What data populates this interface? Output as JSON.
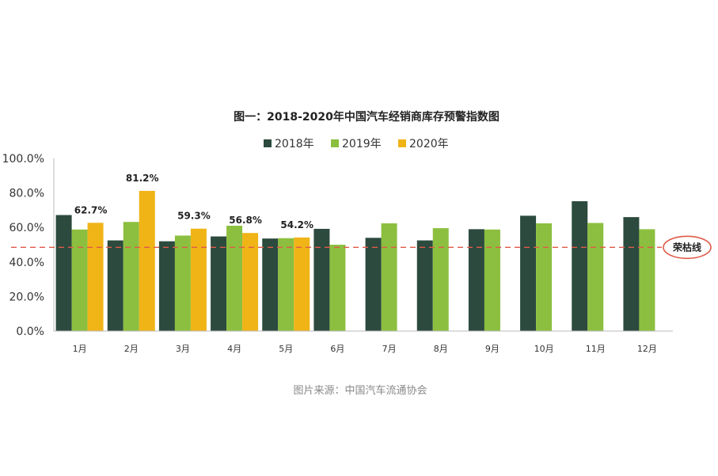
{
  "chart_data": {
    "type": "bar",
    "title": "图一：2018-2020年中国汽车经销商库存预警指数图",
    "categories": [
      "1月",
      "2月",
      "3月",
      "4月",
      "5月",
      "6月",
      "7月",
      "8月",
      "9月",
      "10月",
      "11月",
      "12月"
    ],
    "series": [
      {
        "name": "2018年",
        "color": "#2c4a3e",
        "values": [
          67.2,
          52.5,
          52.0,
          54.8,
          53.6,
          59.2,
          54.0,
          52.5,
          59.0,
          66.8,
          75.2,
          66.0
        ]
      },
      {
        "name": "2019年",
        "color": "#8cbf3f",
        "values": [
          58.8,
          63.2,
          55.3,
          61.0,
          53.8,
          50.0,
          62.4,
          59.6,
          58.8,
          62.4,
          62.6,
          59.0
        ]
      },
      {
        "name": "2020年",
        "color": "#f0b417",
        "values": [
          62.7,
          81.2,
          59.3,
          56.8,
          54.2,
          null,
          null,
          null,
          null,
          null,
          null,
          null
        ]
      }
    ],
    "data_labels": [
      {
        "category_index": 0,
        "series_index": 2,
        "text": "62.7%"
      },
      {
        "category_index": 1,
        "series_index": 2,
        "text": "81.2%"
      },
      {
        "category_index": 2,
        "series_index": 2,
        "text": "59.3%"
      },
      {
        "category_index": 3,
        "series_index": 2,
        "text": "56.8%"
      },
      {
        "category_index": 4,
        "series_index": 2,
        "text": "54.2%"
      }
    ],
    "yticks": [
      "0.0%",
      "20.0%",
      "40.0%",
      "60.0%",
      "80.0%",
      "100.0%"
    ],
    "ylim": [
      0,
      100
    ],
    "reference_line": {
      "value": 48.5,
      "label": "荣枯线",
      "color": "#e05a4a"
    },
    "legend_position": "top",
    "grid": false
  },
  "source_note": "图片来源：中国汽车流通协会"
}
